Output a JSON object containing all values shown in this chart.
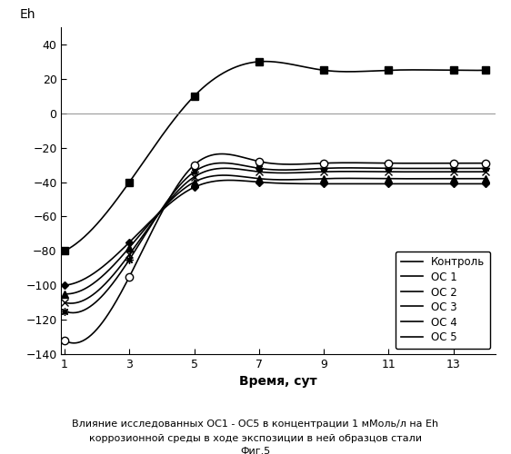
{
  "x": [
    1,
    3,
    5,
    7,
    9,
    11,
    13,
    14
  ],
  "kontrol": [
    -80,
    -40,
    10,
    30,
    25,
    25,
    25,
    25
  ],
  "oc1": [
    -100,
    -75,
    -43,
    -40,
    -41,
    -41,
    -41,
    -41
  ],
  "oc2": [
    -105,
    -78,
    -40,
    -38,
    -38,
    -38,
    -38,
    -38
  ],
  "oc3": [
    -110,
    -82,
    -37,
    -34,
    -34,
    -34,
    -34,
    -34
  ],
  "oc4": [
    -115,
    -85,
    -34,
    -32,
    -32,
    -32,
    -32,
    -32
  ],
  "oc5": [
    -132,
    -95,
    -30,
    -28,
    -29,
    -29,
    -29,
    -29
  ],
  "ylim": [
    -140,
    50
  ],
  "xlim_min": 1,
  "xlim_max": 14.3,
  "yticks": [
    -140,
    -120,
    -100,
    -80,
    -60,
    -40,
    -20,
    0,
    20,
    40
  ],
  "xticks": [
    1,
    3,
    5,
    7,
    9,
    11,
    13
  ],
  "ylabel": "Eh",
  "xlabel": "Время, сут",
  "legend_labels": [
    "Контроль",
    "ОС 1",
    "ОС 2",
    "ОС 3",
    "ОС 4",
    "ОС 5"
  ],
  "caption_line1": "Влияние исследованных ОС1 - ОС5 в концентрации 1 мМоль/л на Eh",
  "caption_line2": "коррозионной среды в ходе экспозиции в ней образцов стали",
  "caption_line3": "Фиг.5",
  "bg_color": "#ffffff"
}
